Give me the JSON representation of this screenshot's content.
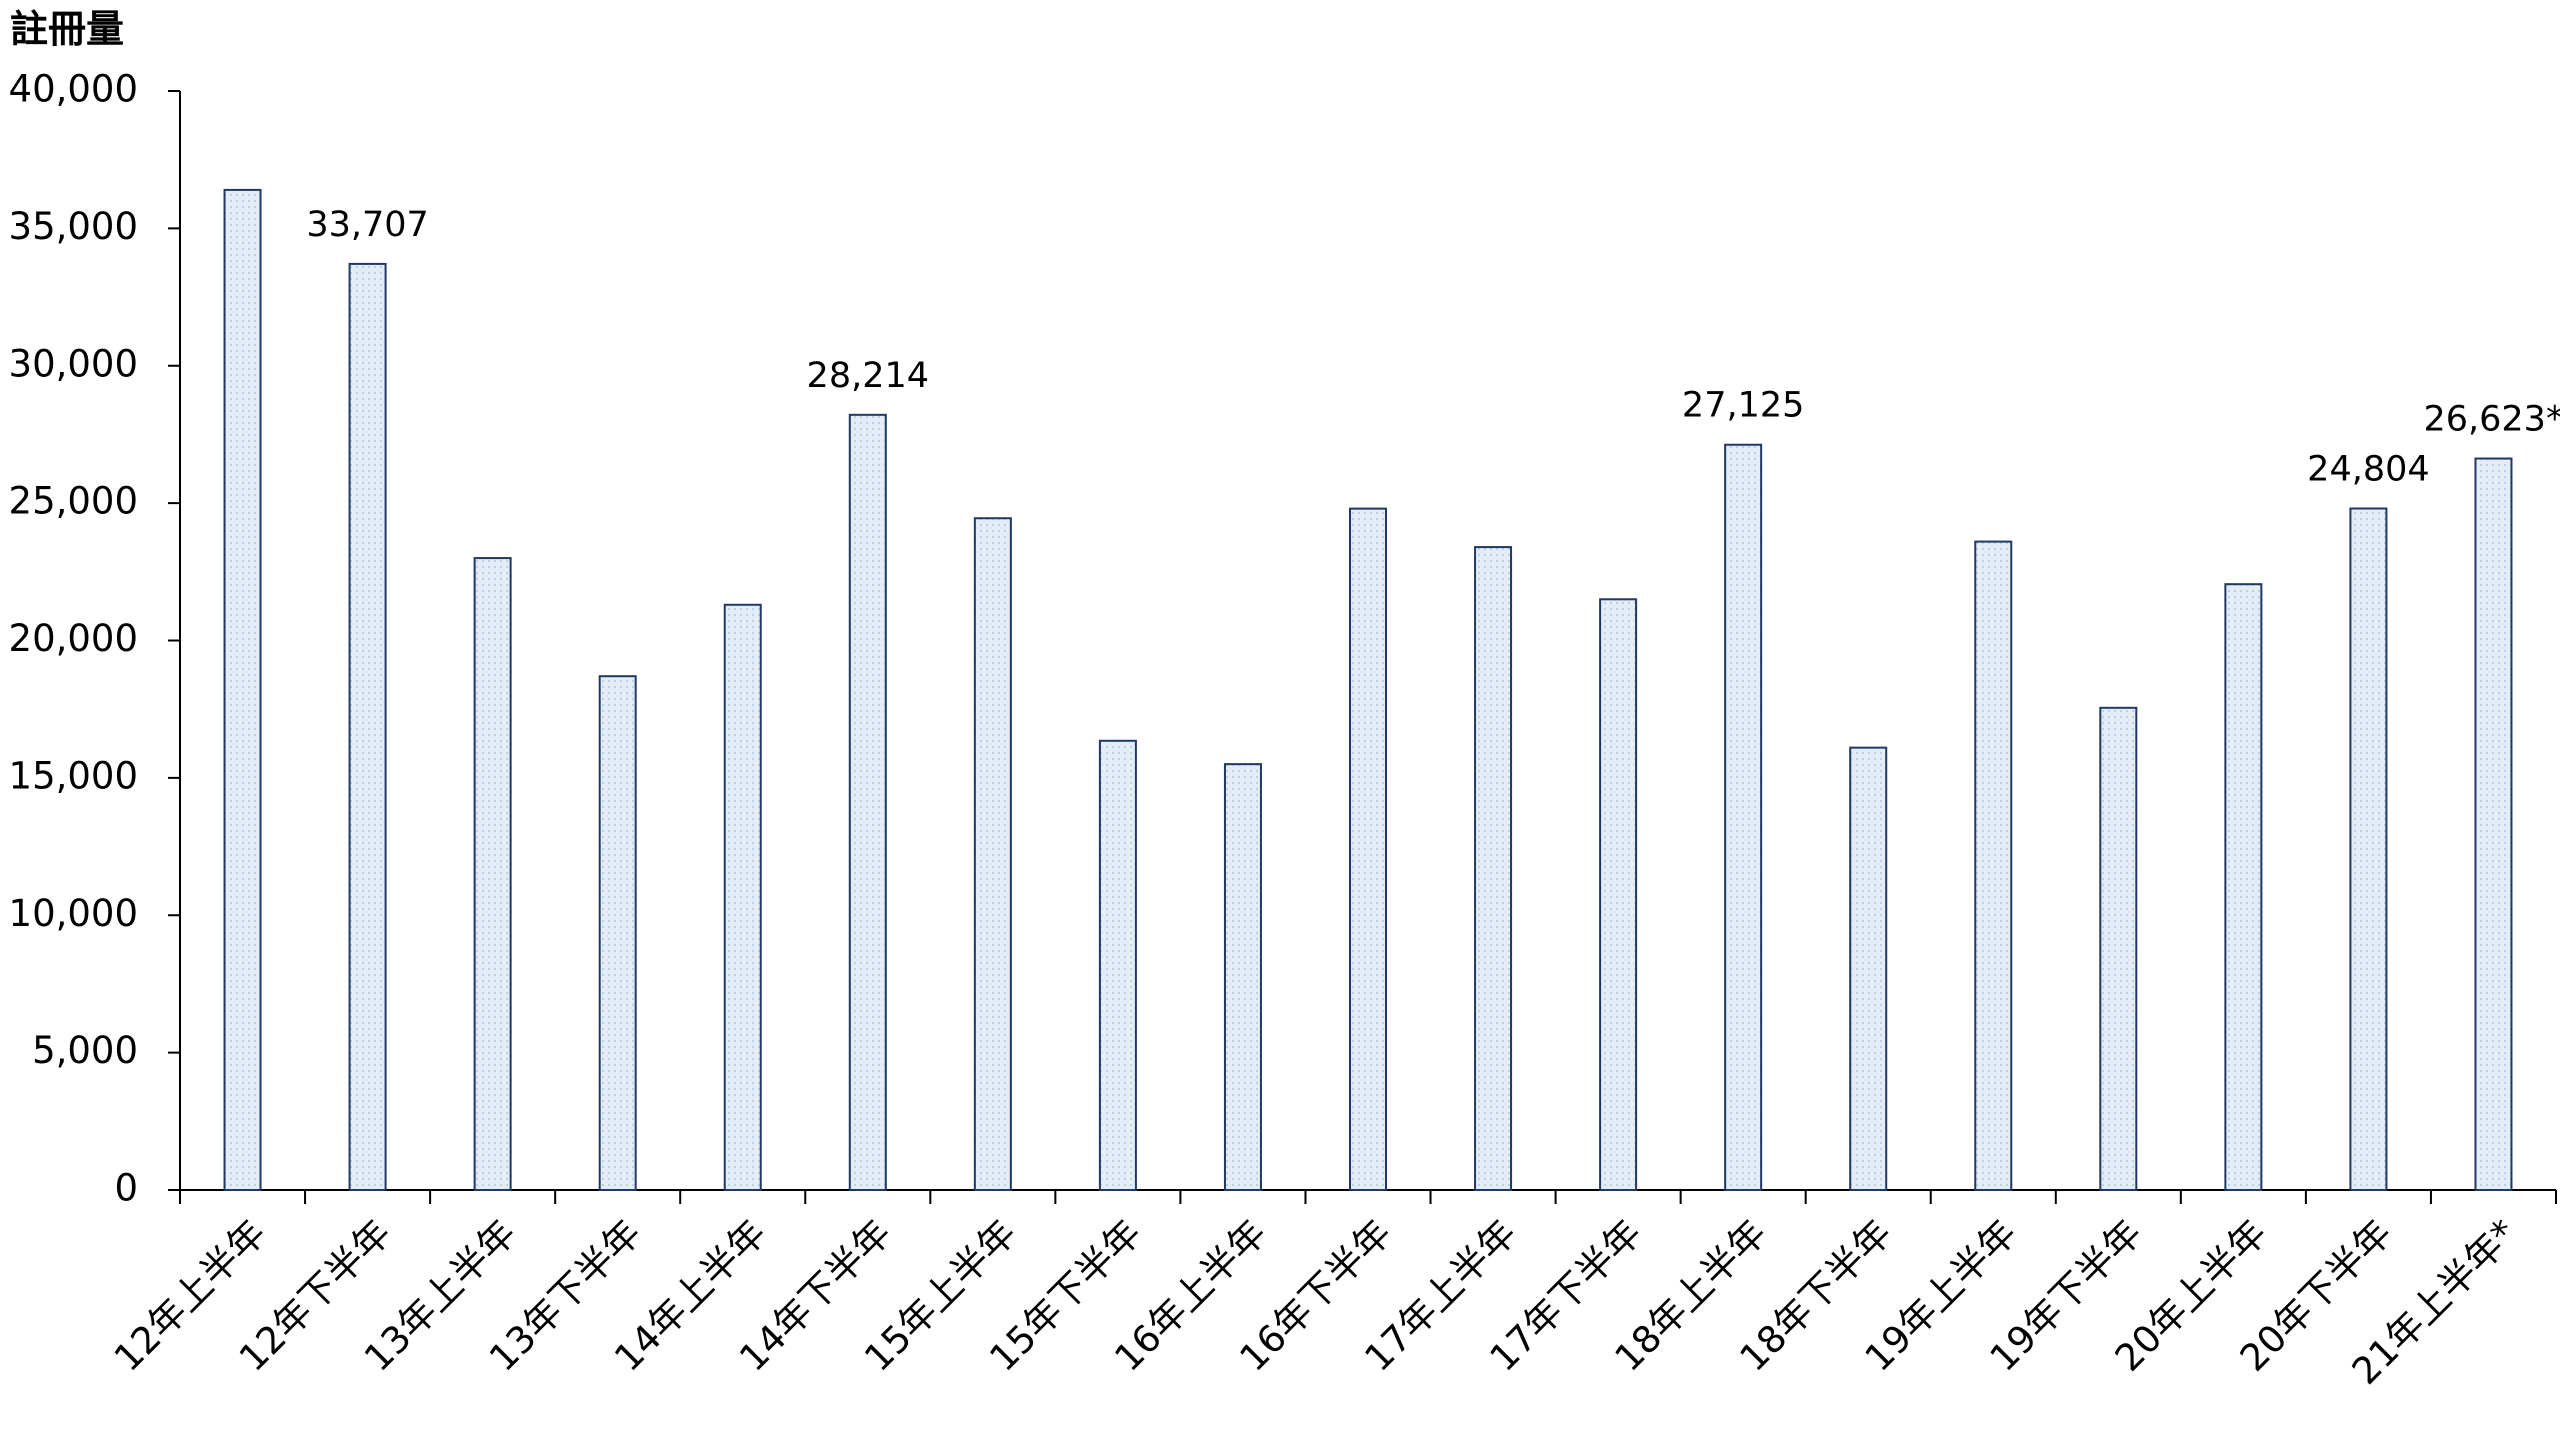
{
  "chart_data": {
    "type": "bar",
    "y_label": "註冊量",
    "categories": [
      "12年上半年",
      "12年下半年",
      "13年上半年",
      "13年下半年",
      "14年上半年",
      "14年下半年",
      "15年上半年",
      "15年下半年",
      "16年上半年",
      "16年下半年",
      "17年上半年",
      "17年下半年",
      "18年上半年",
      "18年下半年",
      "19年上半年",
      "19年下半年",
      "20年上半年",
      "20年下半年",
      "21年上半年*"
    ],
    "values": [
      36400,
      33707,
      23000,
      18700,
      21300,
      28214,
      24450,
      16350,
      15500,
      24800,
      23400,
      21500,
      27125,
      16100,
      23600,
      17550,
      22050,
      24804,
      26623
    ],
    "value_labels": [
      null,
      "33,707",
      null,
      null,
      null,
      "28,214",
      null,
      null,
      null,
      null,
      null,
      null,
      "27,125",
      null,
      null,
      null,
      null,
      "24,804",
      "26,623*"
    ],
    "color": "#e4edf6",
    "edge_color": "#1f3864",
    "ylim": [
      0,
      40000
    ],
    "yticks": [
      0,
      {
        "value": 5000,
        "label": "5,000"
      },
      {
        "value": 10000,
        "label": "10,000"
      },
      {
        "value": 15000,
        "label": "15,000"
      },
      {
        "value": 20000,
        "label": "20,000"
      },
      {
        "value": 25000,
        "label": "25,000"
      },
      {
        "value": 30000,
        "label": "30,000"
      },
      {
        "value": 35000,
        "label": "35,000"
      },
      {
        "value": 40000,
        "label": "40,000"
      }
    ],
    "grid": false
  }
}
